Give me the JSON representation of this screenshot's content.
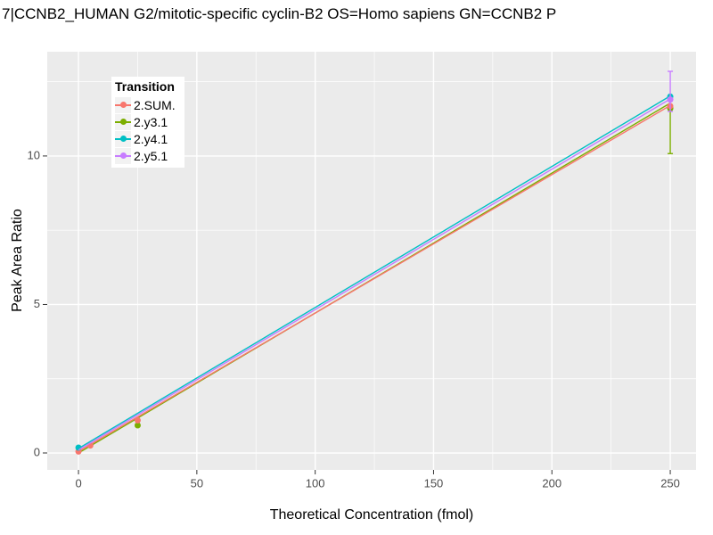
{
  "title": "7|CCNB2_HUMAN G2/mitotic-specific cyclin-B2 OS=Homo sapiens GN=CCNB2 P",
  "chart_data": {
    "type": "line",
    "title": "7|CCNB2_HUMAN G2/mitotic-specific cyclin-B2 OS=Homo sapiens GN=CCNB2 P",
    "xlabel": "Theoretical Concentration (fmol)",
    "ylabel": "Peak Area Ratio",
    "xlim": [
      -13.2,
      260.9
    ],
    "ylim": [
      -0.57,
      13.51
    ],
    "x_ticks": [
      0,
      50,
      100,
      150,
      200,
      250
    ],
    "x_minor_ticks": [
      25,
      75,
      125,
      175,
      225
    ],
    "y_ticks": [
      0,
      5,
      10
    ],
    "y_minor_ticks": [
      2.5,
      7.5,
      12.5
    ],
    "grid": true,
    "panel_bg": "#EBEBEB",
    "grid_major_color": "#FFFFFF",
    "grid_minor_color": "#FFFFFF",
    "tick_color": "#333333",
    "tick_label_color": "#4D4D4D",
    "legend": {
      "title": "Transition",
      "position": "inside-top-left",
      "background": "#FFFFFF",
      "key_background": "#F2F2F2"
    },
    "draw_order": [
      1,
      0,
      2,
      3
    ],
    "series": [
      {
        "name": "2.SUM.",
        "color": "#F8766D",
        "line": {
          "x": [
            0,
            250
          ],
          "y": [
            0.05,
            11.7
          ]
        },
        "points": [
          [
            0,
            0.05
          ],
          [
            5,
            0.25
          ],
          [
            25,
            1.1
          ],
          [
            250,
            11.68
          ]
        ],
        "errorbars": []
      },
      {
        "name": "2.y3.1",
        "color": "#7CAE00",
        "line": {
          "x": [
            0,
            250
          ],
          "y": [
            0.0,
            11.78
          ]
        },
        "points": [
          [
            25,
            0.93
          ],
          [
            250,
            11.6
          ]
        ],
        "errorbars": [
          {
            "x": 250,
            "lo": 10.08,
            "hi": 11.65
          }
        ]
      },
      {
        "name": "2.y4.1",
        "color": "#00BFC4",
        "line": {
          "x": [
            0,
            250
          ],
          "y": [
            0.15,
            12.02
          ]
        },
        "points": [
          [
            0,
            0.18
          ],
          [
            250,
            12.0
          ]
        ],
        "errorbars": []
      },
      {
        "name": "2.y5.1",
        "color": "#C77CFF",
        "line": {
          "x": [
            0,
            250
          ],
          "y": [
            0.1,
            11.92
          ]
        },
        "points": [
          [
            250,
            11.9
          ]
        ],
        "errorbars": [
          {
            "x": 250,
            "lo": 11.5,
            "hi": 12.85
          }
        ]
      }
    ]
  }
}
